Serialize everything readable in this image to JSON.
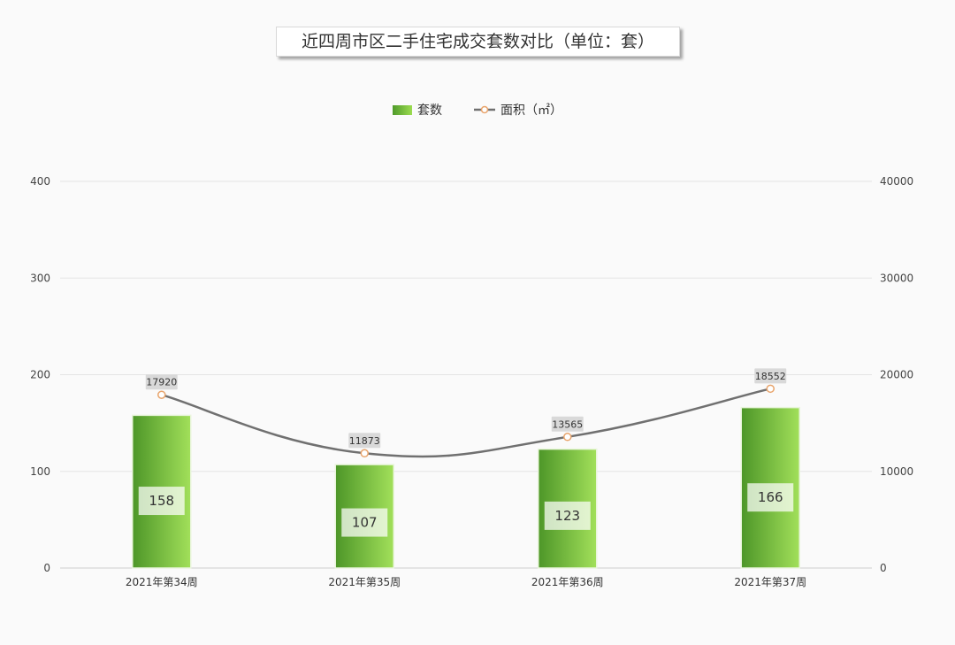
{
  "chart_data": {
    "type": "bar",
    "title": "近四周市区二手住宅成交套数对比（单位：套）",
    "categories": [
      "2021年第34周",
      "2021年第35周",
      "2021年第36周",
      "2021年第37周"
    ],
    "series": [
      {
        "name": "套数",
        "type": "bar",
        "axis": "left",
        "values": [
          158,
          107,
          123,
          166
        ],
        "color": "#7cc142"
      },
      {
        "name": "面积（㎡）",
        "type": "line",
        "axis": "right",
        "values": [
          17920,
          11873,
          13565,
          18552
        ],
        "color": "#707070",
        "marker_color": "#e8a36a"
      }
    ],
    "y_left": {
      "min": 0,
      "max": 400,
      "ticks": [
        0,
        100,
        200,
        300,
        400
      ]
    },
    "y_right": {
      "min": 0,
      "max": 40000,
      "ticks": [
        0,
        10000,
        20000,
        30000,
        40000
      ]
    },
    "grid": true,
    "legend_position": "top-center",
    "xlabel": "",
    "ylabel": ""
  }
}
